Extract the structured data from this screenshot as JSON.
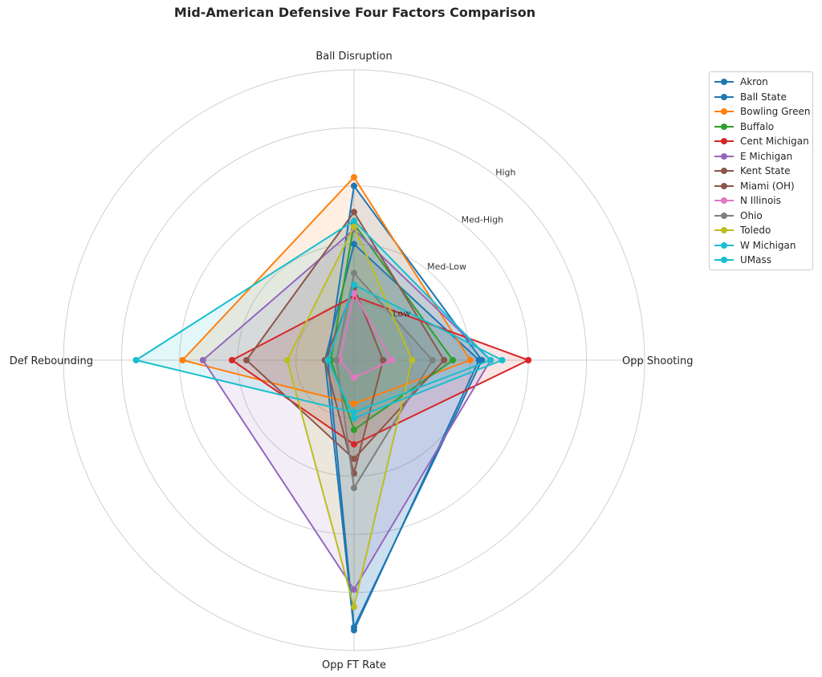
{
  "chart_data": {
    "type": "radar",
    "title": "Mid-American Defensive Four Factors Comparison",
    "axes": [
      "Ball Disruption",
      "Opp Shooting",
      "Opp FT Rate",
      "Def Rebounding"
    ],
    "rlim": [
      0,
      1
    ],
    "ring_labels": [
      "Low",
      "Med-Low",
      "Med-High",
      "High"
    ],
    "ring_values": [
      0.2,
      0.4,
      0.6,
      0.8
    ],
    "grid": true,
    "legend_placement": "upper-right-outside",
    "series": [
      {
        "name": "Akron",
        "color": "#1f77b4",
        "values": [
          0.4,
          0.43,
          0.93,
          0.1
        ]
      },
      {
        "name": "Ball State",
        "color": "#1f77b4",
        "values": [
          0.6,
          0.44,
          0.92,
          0.09
        ]
      },
      {
        "name": "Bowling Green",
        "color": "#ff7f0e",
        "values": [
          0.63,
          0.4,
          0.15,
          0.59
        ]
      },
      {
        "name": "Buffalo",
        "color": "#2ca02c",
        "values": [
          0.47,
          0.34,
          0.24,
          0.08
        ]
      },
      {
        "name": "Cent Michigan",
        "color": "#d62728",
        "values": [
          0.22,
          0.6,
          0.29,
          0.42
        ]
      },
      {
        "name": "E Michigan",
        "color": "#9467bd",
        "values": [
          0.45,
          0.47,
          0.79,
          0.52
        ]
      },
      {
        "name": "Kent State",
        "color": "#8c564b",
        "values": [
          0.51,
          0.31,
          0.34,
          0.37
        ]
      },
      {
        "name": "Miami (OH)",
        "color": "#8c564b",
        "values": [
          0.25,
          0.1,
          0.39,
          0.1
        ]
      },
      {
        "name": "N Illinois",
        "color": "#e377c2",
        "values": [
          0.23,
          0.13,
          0.06,
          0.05
        ]
      },
      {
        "name": "Ohio",
        "color": "#7f7f7f",
        "values": [
          0.3,
          0.27,
          0.44,
          0.06
        ]
      },
      {
        "name": "Toledo",
        "color": "#bcbd22",
        "values": [
          0.46,
          0.2,
          0.85,
          0.23
        ]
      },
      {
        "name": "W Michigan",
        "color": "#17becf",
        "values": [
          0.48,
          0.47,
          0.18,
          0.75
        ]
      },
      {
        "name": "UMass",
        "color": "#17becf",
        "values": [
          0.26,
          0.51,
          0.2,
          0.09
        ]
      }
    ]
  }
}
